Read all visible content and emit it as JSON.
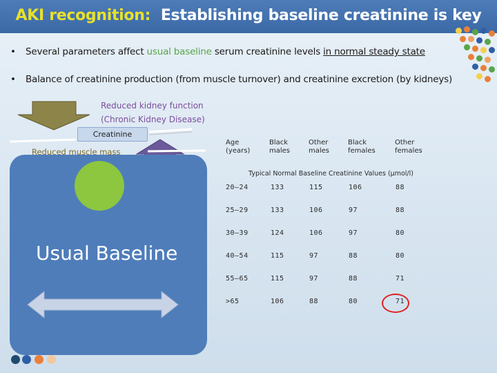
{
  "title": {
    "accent": "AKI recognition:",
    "rest": "Establishing baseline creatinine is key"
  },
  "bullets": [
    {
      "marker": "•",
      "before": "Several parameters affect ",
      "highlight": "usual baseline",
      "middle": " serum creatinine levels ",
      "underlined": "in normal steady state"
    },
    {
      "marker": "•",
      "text": "Balance of creatinine production (from muscle turnover) and creatinine excretion (by kidneys)"
    }
  ],
  "diagram": {
    "kidney_line1": "Reduced kidney function",
    "kidney_line2": "(Chronic Kidney Disease)",
    "creatinine_label": "Creatinine",
    "muscle_label": "Reduced muscle mass",
    "baseline_label": "Usual Baseline",
    "colors": {
      "down_arrow": "#8c8448",
      "up_arrow": "#6a5a9b",
      "panel": "#4f7dba",
      "circle": "#8dc63f"
    }
  },
  "table": {
    "caption": "Typical Normal Baseline Creatinine Values (µmol/l)",
    "headers": [
      [
        "Age",
        "(years)"
      ],
      [
        "Black",
        "males"
      ],
      [
        "Other",
        "males"
      ],
      [
        "Black",
        "females"
      ],
      [
        "Other",
        "females"
      ]
    ],
    "rows": [
      [
        "20–24",
        "133",
        "115",
        "106",
        "88"
      ],
      [
        "25–29",
        "133",
        "106",
        "97",
        "88"
      ],
      [
        "30–39",
        "124",
        "106",
        "97",
        "80"
      ],
      [
        "40–54",
        "115",
        "97",
        "88",
        "80"
      ],
      [
        "55–65",
        "115",
        "97",
        "88",
        "71"
      ],
      [
        ">65",
        "106",
        "88",
        "80",
        "71"
      ]
    ],
    "highlight_color": "#e02020"
  }
}
